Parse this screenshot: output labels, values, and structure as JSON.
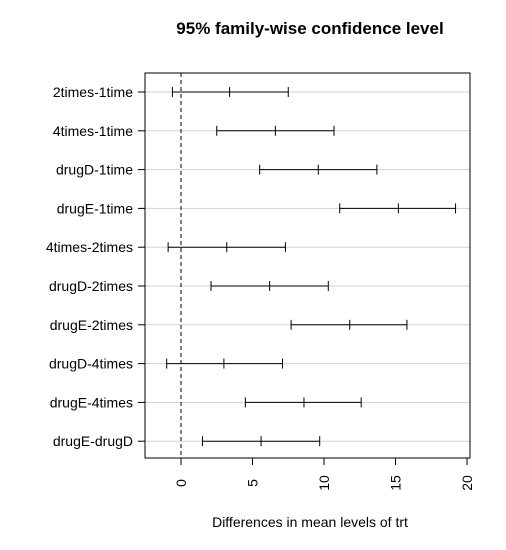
{
  "chart_data": {
    "type": "interval",
    "title": "95% family-wise confidence level",
    "xlabel": "Differences in mean levels of trt",
    "ylabel": "",
    "xlim": [
      -1.5,
      20
    ],
    "x_ticks": [
      0,
      5,
      10,
      15,
      20
    ],
    "reference_line_x": 0,
    "grid": "horizontal",
    "comparisons": [
      {
        "label": "2times-1time",
        "lwr": -0.6,
        "diff": 3.4,
        "upr": 7.5
      },
      {
        "label": "4times-1time",
        "lwr": 2.5,
        "diff": 6.6,
        "upr": 10.7
      },
      {
        "label": "drugD-1time",
        "lwr": 5.5,
        "diff": 9.6,
        "upr": 13.7
      },
      {
        "label": "drugE-1time",
        "lwr": 11.1,
        "diff": 15.2,
        "upr": 19.2
      },
      {
        "label": "4times-2times",
        "lwr": -0.9,
        "diff": 3.2,
        "upr": 7.3
      },
      {
        "label": "drugD-2times",
        "lwr": 2.1,
        "diff": 6.2,
        "upr": 10.3
      },
      {
        "label": "drugE-2times",
        "lwr": 7.7,
        "diff": 11.8,
        "upr": 15.8
      },
      {
        "label": "drugD-4times",
        "lwr": -1.0,
        "diff": 3.0,
        "upr": 7.1
      },
      {
        "label": "drugE-4times",
        "lwr": 4.5,
        "diff": 8.6,
        "upr": 12.6
      },
      {
        "label": "drugE-drugD",
        "lwr": 1.5,
        "diff": 5.6,
        "upr": 9.7
      }
    ]
  }
}
